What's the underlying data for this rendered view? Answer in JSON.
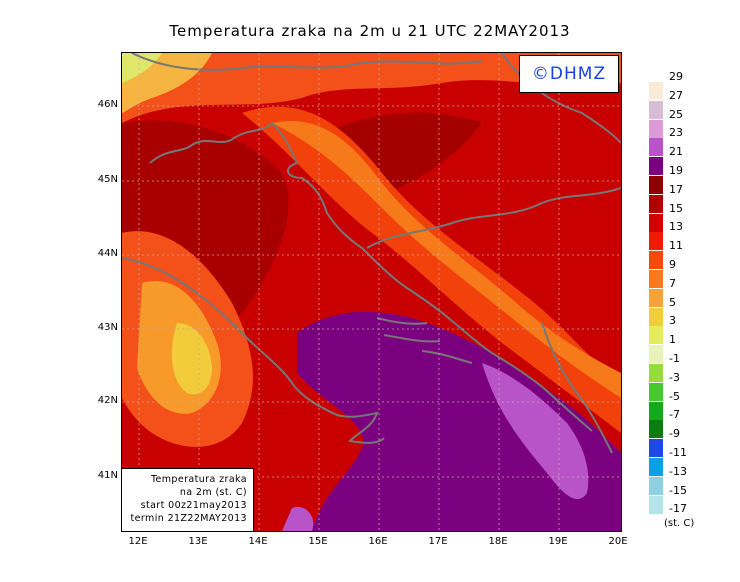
{
  "title": "Temperatura zraka na 2m u 21 UTC 22MAY2013",
  "watermark": "©DHMZ",
  "info_box": {
    "line1": "Temperatura zraka",
    "line2": "na 2m (st. C)",
    "line3": "start 00z21may2013",
    "line4": "termin 21Z22MAY2013"
  },
  "axes": {
    "lat_labels": [
      "46N",
      "45N",
      "44N",
      "43N",
      "42N",
      "41N"
    ],
    "lon_labels": [
      "12E",
      "13E",
      "14E",
      "15E",
      "16E",
      "17E",
      "18E",
      "19E",
      "20E"
    ]
  },
  "legend": {
    "units": "(st. C)",
    "labels": [
      "29",
      "27",
      "25",
      "23",
      "21",
      "19",
      "17",
      "15",
      "13",
      "11",
      "9",
      "7",
      "5",
      "3",
      "1",
      "-1",
      "-3",
      "-5",
      "-7",
      "-9",
      "-11",
      "-13",
      "-15",
      "-17"
    ],
    "colors": [
      "#fbecd9",
      "#d8bcd6",
      "#dc9bd6",
      "#b854c8",
      "#7a0080",
      "#8e0000",
      "#b00000",
      "#d40000",
      "#f01a00",
      "#f54a0a",
      "#f97a1e",
      "#f5a23a",
      "#f1cd3a",
      "#e3ec5a",
      "#e7f3bb",
      "#95dd3c",
      "#45c92e",
      "#13aa1e",
      "#0c7e10",
      "#1e49e6",
      "#0aa0e6",
      "#8fd0e2",
      "#b5e4ea",
      "#e8f8fa"
    ]
  },
  "colors": {
    "coastline": "#777777",
    "sea": "#7a0080",
    "sea_warm": "#b854c8",
    "land_base": "#c40000"
  }
}
